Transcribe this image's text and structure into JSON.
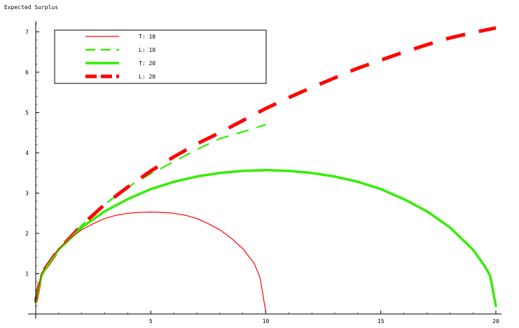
{
  "chart_data": {
    "type": "line",
    "title": "",
    "ylabel": "Expected  Surplus",
    "xlabel": "",
    "xlim": [
      0,
      20
    ],
    "ylim": [
      0,
      7.3
    ],
    "x_ticks": [
      5,
      10,
      15,
      20
    ],
    "y_ticks": [
      1,
      2,
      3,
      4,
      5,
      6,
      7
    ],
    "grid": false,
    "legend_position": "top-left",
    "series": [
      {
        "name": "T: 10",
        "color": "#ff0000",
        "style": "solid-thin",
        "x": [
          0,
          0.25,
          0.5,
          1,
          1.5,
          2,
          2.5,
          3,
          3.5,
          4,
          4.5,
          5,
          5.5,
          6,
          6.5,
          7,
          7.5,
          8,
          8.5,
          9,
          9.5,
          9.75,
          10
        ],
        "y": [
          0.3,
          1.0,
          1.25,
          1.62,
          1.88,
          2.09,
          2.24,
          2.37,
          2.45,
          2.5,
          2.52,
          2.53,
          2.52,
          2.5,
          2.45,
          2.37,
          2.24,
          2.09,
          1.88,
          1.62,
          1.25,
          0.9,
          0.05
        ]
      },
      {
        "name": "L: 10",
        "color": "#33ee00",
        "style": "dashed-thin",
        "x": [
          0,
          0.25,
          0.5,
          1,
          1.5,
          2,
          3,
          4,
          5,
          6,
          7,
          8,
          9,
          10
        ],
        "y": [
          0.3,
          1.0,
          1.2,
          1.58,
          1.9,
          2.2,
          2.72,
          3.15,
          3.48,
          3.78,
          4.08,
          4.35,
          4.52,
          4.7
        ]
      },
      {
        "name": "T: 20",
        "color": "#33ee00",
        "style": "solid-thick",
        "x": [
          0,
          0.25,
          0.5,
          1,
          2,
          3,
          4,
          5,
          6,
          7,
          8,
          9,
          10,
          11,
          12,
          13,
          14,
          15,
          16,
          17,
          18,
          19,
          19.5,
          19.75,
          20
        ],
        "y": [
          0.3,
          0.95,
          1.2,
          1.6,
          2.15,
          2.55,
          2.85,
          3.1,
          3.28,
          3.41,
          3.5,
          3.55,
          3.57,
          3.55,
          3.5,
          3.41,
          3.28,
          3.1,
          2.85,
          2.55,
          2.15,
          1.6,
          1.2,
          0.95,
          0.2
        ]
      },
      {
        "name": "L: 20",
        "color": "#ff0000",
        "style": "dashed-thick",
        "x": [
          0,
          0.25,
          0.5,
          1,
          2,
          3,
          4,
          5,
          6,
          7,
          8,
          9,
          10,
          11,
          12,
          13,
          14,
          15,
          16,
          17,
          18,
          19,
          20
        ],
        "y": [
          0.3,
          1.0,
          1.2,
          1.6,
          2.2,
          2.72,
          3.15,
          3.55,
          3.9,
          4.22,
          4.5,
          4.8,
          5.1,
          5.37,
          5.62,
          5.86,
          6.1,
          6.3,
          6.5,
          6.68,
          6.85,
          6.98,
          7.1
        ]
      }
    ]
  }
}
